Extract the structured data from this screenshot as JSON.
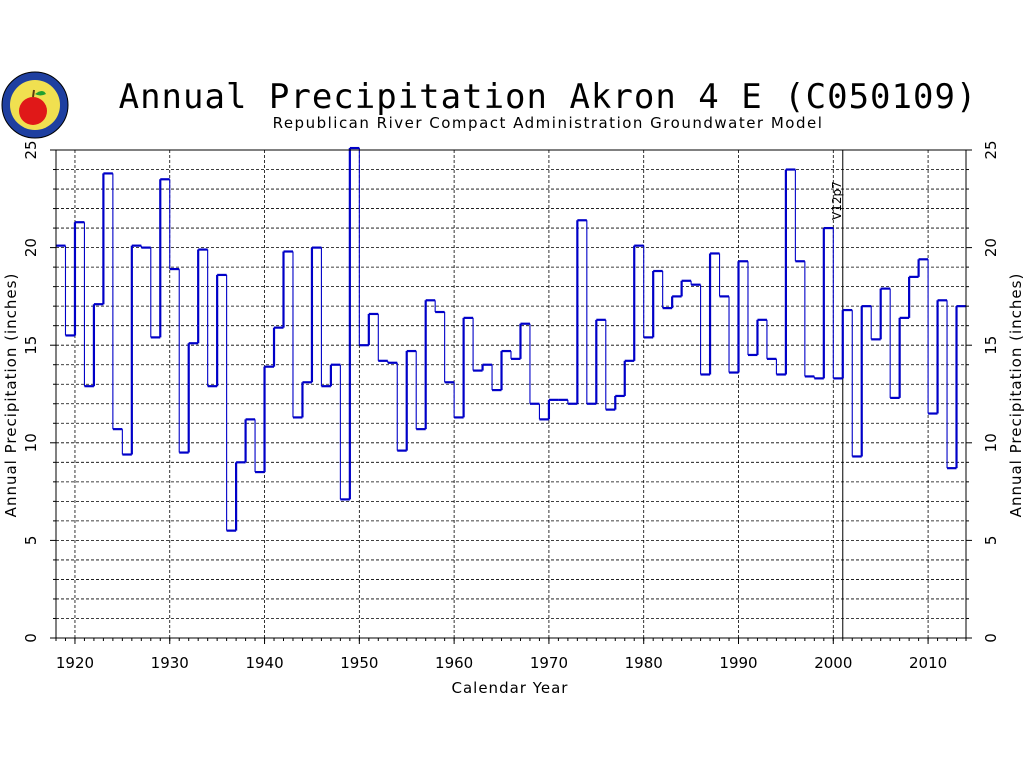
{
  "chart_data": {
    "type": "line",
    "style": "step",
    "title": "Annual Precipitation Akron 4 E (C050109)",
    "subtitle": "Republican River Compact Administration Groundwater Model",
    "xlabel": "Calendar Year",
    "ylabel": "Annual Precipitation (inches)",
    "xlim": [
      1918,
      2014
    ],
    "ylim": [
      0,
      25
    ],
    "xticks": [
      1920,
      1930,
      1940,
      1950,
      1960,
      1970,
      1980,
      1990,
      2000,
      2010
    ],
    "yticks": [
      0,
      5,
      10,
      15,
      20,
      25
    ],
    "grid": true,
    "x": [
      1918,
      1919,
      1920,
      1921,
      1922,
      1923,
      1924,
      1925,
      1926,
      1927,
      1928,
      1929,
      1930,
      1931,
      1932,
      1933,
      1934,
      1935,
      1936,
      1937,
      1938,
      1939,
      1940,
      1941,
      1942,
      1943,
      1944,
      1945,
      1946,
      1947,
      1948,
      1949,
      1950,
      1951,
      1952,
      1953,
      1954,
      1955,
      1956,
      1957,
      1958,
      1959,
      1960,
      1961,
      1962,
      1963,
      1964,
      1965,
      1966,
      1967,
      1968,
      1969,
      1970,
      1971,
      1972,
      1973,
      1974,
      1975,
      1976,
      1977,
      1978,
      1979,
      1980,
      1981,
      1982,
      1983,
      1984,
      1985,
      1986,
      1987,
      1988,
      1989,
      1990,
      1991,
      1992,
      1993,
      1994,
      1995,
      1996,
      1997,
      1998,
      1999,
      2000,
      2001,
      2002,
      2003,
      2004,
      2005,
      2006,
      2007,
      2008,
      2009,
      2010,
      2011,
      2012,
      2013
    ],
    "series": [
      {
        "name": "",
        "color": "#0000c8",
        "values": [
          20.1,
          15.5,
          21.3,
          12.9,
          17.1,
          23.8,
          10.7,
          9.4,
          20.1,
          20.0,
          15.4,
          23.5,
          18.9,
          9.5,
          15.1,
          19.9,
          12.9,
          18.6,
          5.5,
          9.0,
          11.2,
          8.5,
          13.9,
          15.9,
          19.8,
          11.3,
          13.1,
          20.0,
          12.9,
          14.0,
          7.1,
          25.1,
          15.0,
          16.6,
          14.2,
          14.1,
          9.6,
          14.7,
          10.7,
          17.3,
          16.7,
          13.1,
          11.3,
          16.4,
          13.7,
          14.0,
          12.7,
          14.7,
          14.3,
          16.1,
          12.0,
          11.2,
          12.2,
          12.2,
          12.0,
          21.4,
          12.0,
          16.3,
          11.7,
          12.4,
          14.2,
          20.1,
          15.4,
          18.8,
          16.9,
          17.5,
          18.3,
          18.1,
          13.5,
          19.7,
          17.5,
          13.6,
          19.3,
          14.5,
          16.3,
          14.3,
          13.5,
          24.0,
          19.3,
          13.4,
          13.3,
          21.0,
          13.3,
          16.8,
          9.3,
          17.0,
          15.3,
          17.9,
          12.3,
          16.4,
          18.5,
          19.4,
          11.5,
          17.3,
          8.7,
          17.0
        ]
      }
    ],
    "annotations": [
      {
        "label": "V12p7",
        "x": 2001
      }
    ]
  }
}
